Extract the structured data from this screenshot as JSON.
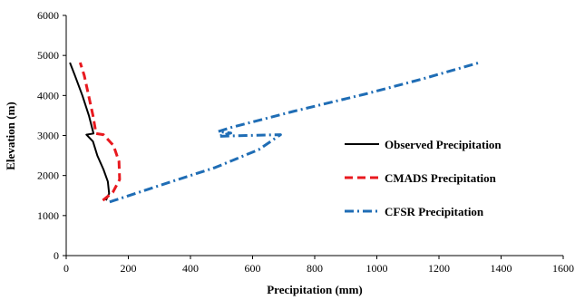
{
  "chart_data": {
    "type": "line",
    "xlabel": "Precipitation (mm)",
    "ylabel": "Elevation (m)",
    "xlim": [
      0,
      1600
    ],
    "ylim": [
      0,
      6000
    ],
    "xticks": [
      0,
      200,
      400,
      600,
      800,
      1000,
      1200,
      1400,
      1600
    ],
    "yticks": [
      0,
      1000,
      2000,
      3000,
      4000,
      5000,
      6000
    ],
    "grid": false,
    "legend_position": "right",
    "series": [
      {
        "name": "Observed Precipitation",
        "color": "#000000",
        "dash": "solid",
        "points": [
          [
            128,
            1380
          ],
          [
            138,
            1550
          ],
          [
            134,
            1850
          ],
          [
            120,
            2150
          ],
          [
            100,
            2500
          ],
          [
            86,
            2850
          ],
          [
            65,
            3020
          ],
          [
            88,
            3050
          ],
          [
            73,
            3500
          ],
          [
            52,
            4000
          ],
          [
            28,
            4500
          ],
          [
            12,
            4820
          ]
        ]
      },
      {
        "name": "CMADS Precipitation",
        "color": "#e8191f",
        "dash": "dashed",
        "points": [
          [
            118,
            1380
          ],
          [
            150,
            1580
          ],
          [
            172,
            1900
          ],
          [
            170,
            2350
          ],
          [
            152,
            2750
          ],
          [
            120,
            3020
          ],
          [
            96,
            3050
          ],
          [
            86,
            3500
          ],
          [
            72,
            4000
          ],
          [
            58,
            4500
          ],
          [
            45,
            4820
          ]
        ]
      },
      {
        "name": "CFSR Precipitation",
        "color": "#1f6db5",
        "dash": "dashdot",
        "points": [
          [
            140,
            1340
          ],
          [
            300,
            1750
          ],
          [
            480,
            2200
          ],
          [
            620,
            2650
          ],
          [
            690,
            3020
          ],
          [
            580,
            3000
          ],
          [
            490,
            2980
          ],
          [
            530,
            3060
          ],
          [
            490,
            3100
          ],
          [
            530,
            3200
          ],
          [
            730,
            3600
          ],
          [
            960,
            4030
          ],
          [
            1150,
            4420
          ],
          [
            1330,
            4820
          ]
        ]
      }
    ]
  }
}
